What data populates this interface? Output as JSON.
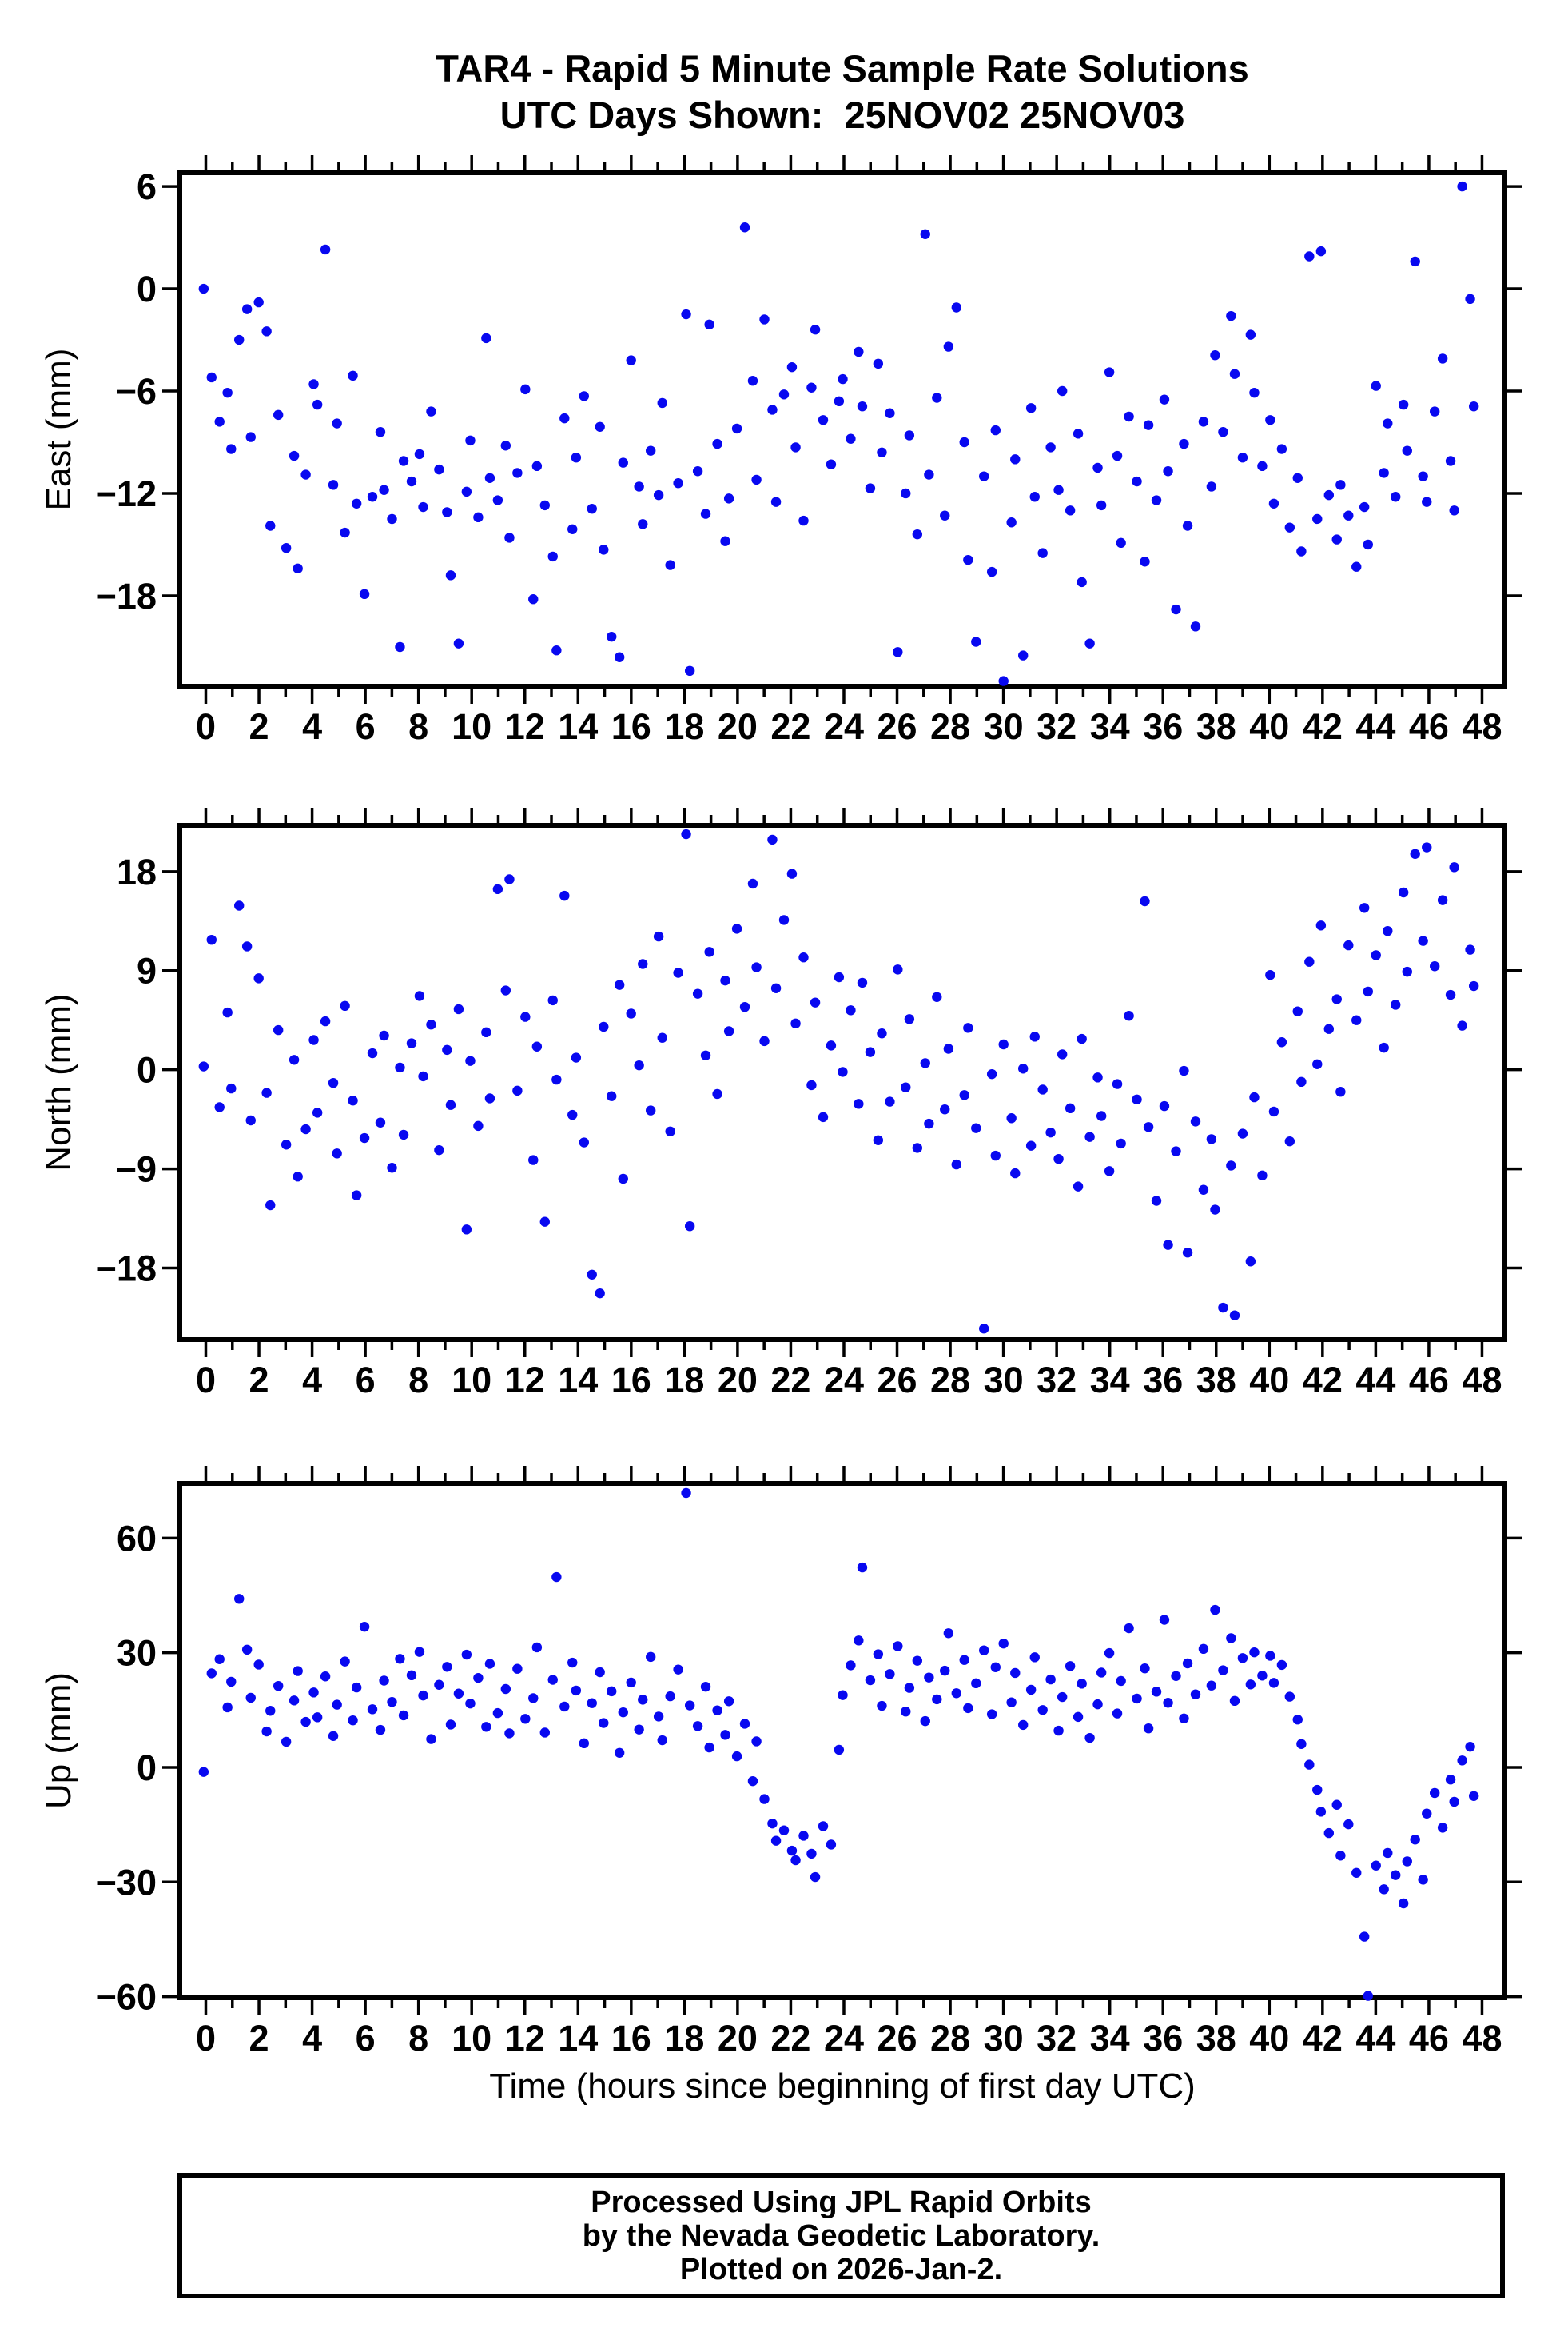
{
  "title": {
    "line1": "TAR4 - Rapid 5 Minute Sample Rate Solutions",
    "line2": "UTC Days Shown:  25NOV02 25NOV03"
  },
  "x_axis": {
    "label": "Time (hours since beginning of first day UTC)",
    "tick_values": [
      0,
      2,
      4,
      6,
      8,
      10,
      12,
      14,
      16,
      18,
      20,
      22,
      24,
      26,
      28,
      30,
      32,
      34,
      36,
      38,
      40,
      42,
      44,
      46,
      48
    ],
    "tick_labels": [
      "0",
      "2",
      "4",
      "6",
      "8",
      "10",
      "12",
      "14",
      "16",
      "18",
      "20",
      "22",
      "24",
      "26",
      "28",
      "30",
      "32",
      "34",
      "36",
      "38",
      "40",
      "42",
      "44",
      "46",
      "48"
    ],
    "minor_step": 1,
    "range": [
      0,
      48
    ]
  },
  "footer": {
    "line1": "Processed Using JPL Rapid Orbits",
    "line2": "by the Nevada Geodetic Laboratory.",
    "line3": "Plotted on 2026-Jan-2."
  },
  "colors": {
    "point": "#0808F0",
    "axis": "#000000"
  },
  "chart_data": [
    {
      "type": "scatter",
      "name": "east",
      "ylabel": "East (mm)",
      "yticks": [
        6,
        0,
        -6,
        -12,
        -18
      ],
      "ytick_labels": [
        "6",
        "0",
        "−6",
        "−12",
        "−18"
      ],
      "ylim": [
        -23.3,
        6.8
      ],
      "x_range": [
        0,
        48
      ],
      "x_start": 0,
      "x_step": 0.25,
      "y": [
        0.0,
        -5.2,
        -7.8,
        -6.1,
        -9.4,
        -3.0,
        -1.2,
        -8.7,
        -0.8,
        -2.5,
        -13.9,
        -7.4,
        -15.2,
        -9.8,
        -16.4,
        -10.9,
        -5.6,
        -6.8,
        2.3,
        -11.5,
        -7.9,
        -14.3,
        -5.1,
        -12.6,
        -17.9,
        -12.2,
        -8.4,
        -11.8,
        -13.5,
        -21.0,
        -10.1,
        -11.3,
        -9.7,
        -12.8,
        -7.2,
        -10.6,
        -13.1,
        -16.8,
        -20.8,
        -11.9,
        -8.9,
        -13.4,
        -2.9,
        -11.1,
        -12.4,
        -9.2,
        -14.6,
        -10.8,
        -5.9,
        -18.2,
        -10.4,
        -12.7,
        -15.7,
        -21.2,
        -7.6,
        -14.1,
        -9.9,
        -6.3,
        -12.9,
        -8.1,
        -15.3,
        -20.4,
        -21.6,
        -10.2,
        -4.2,
        -11.6,
        -13.8,
        -9.5,
        -12.1,
        -6.7,
        -16.2,
        -11.4,
        -1.5,
        -22.4,
        -10.7,
        -13.2,
        -2.1,
        -9.1,
        -14.8,
        -12.3,
        -8.2,
        3.6,
        -5.4,
        -11.2,
        -1.8,
        -7.1,
        -12.5,
        -6.2,
        -4.6,
        -9.3,
        -13.6,
        -5.8,
        -2.4,
        -7.7,
        -10.3,
        -6.6,
        -5.3,
        -8.8,
        -3.7,
        -6.9,
        -11.7,
        -4.4,
        -9.6,
        -7.3,
        -21.3,
        -12.0,
        -8.6,
        -14.4,
        3.2,
        -10.9,
        -6.4,
        -13.3,
        -3.4,
        -1.1,
        -9.0,
        -15.9,
        -20.7,
        -11.0,
        -16.6,
        -8.3,
        -23.0,
        -13.7,
        -10.0,
        -21.5,
        -7.0,
        -12.2,
        -15.5,
        -9.3,
        -11.8,
        -6.0,
        -13.0,
        -8.5,
        -17.2,
        -20.8,
        -10.5,
        -12.7,
        -4.9,
        -9.8,
        -14.9,
        -7.5,
        -11.3,
        -16.0,
        -8.0,
        -12.4,
        -6.5,
        -10.7,
        -18.8,
        -9.1,
        -13.9,
        -19.8,
        -7.8,
        -11.6,
        -3.9,
        -8.4,
        -1.6,
        -5.0,
        -9.9,
        -2.7,
        -6.1,
        -10.4,
        -7.7,
        -12.6,
        -9.4,
        -14.0,
        -11.1,
        -15.4,
        1.9,
        -13.5,
        2.2,
        -12.1,
        -14.7,
        -11.5,
        -13.3,
        -16.3,
        -12.8,
        -15.0,
        -5.7,
        -10.8,
        -7.9,
        -12.2,
        -6.8,
        -9.5,
        1.6,
        -11.0,
        -12.5,
        -7.2,
        -4.1,
        -10.1,
        -13.0,
        6.0,
        -0.6,
        -6.9
      ]
    },
    {
      "type": "scatter",
      "name": "north",
      "ylabel": "North (mm)",
      "yticks": [
        18,
        9,
        0,
        -9,
        -18
      ],
      "ytick_labels": [
        "18",
        "9",
        "0",
        "−9",
        "−18"
      ],
      "ylim": [
        -24.5,
        22.2
      ],
      "x_range": [
        0,
        48
      ],
      "x_start": 0,
      "x_step": 0.25,
      "y": [
        0.3,
        11.8,
        -3.4,
        5.2,
        -1.7,
        14.9,
        11.2,
        -4.6,
        8.3,
        -2.1,
        -12.3,
        3.6,
        -6.8,
        0.9,
        -9.7,
        -5.4,
        2.7,
        -3.9,
        4.4,
        -1.2,
        -7.6,
        5.8,
        -2.8,
        -11.4,
        -6.2,
        1.5,
        -4.8,
        3.1,
        -8.9,
        0.2,
        -5.9,
        2.4,
        6.7,
        -0.6,
        4.1,
        -7.3,
        1.8,
        -3.2,
        5.5,
        -14.5,
        0.8,
        -5.1,
        3.4,
        -2.6,
        16.4,
        7.2,
        17.3,
        -1.9,
        4.8,
        -8.2,
        2.1,
        -13.8,
        6.3,
        -0.9,
        15.8,
        -4.1,
        1.1,
        -6.6,
        -18.6,
        -20.3,
        3.9,
        -2.4,
        7.7,
        -9.9,
        5.1,
        0.4,
        9.6,
        -3.7,
        12.1,
        2.9,
        -5.6,
        8.8,
        21.4,
        -14.2,
        6.9,
        1.3,
        10.7,
        -2.2,
        8.1,
        3.5,
        12.8,
        5.7,
        16.9,
        9.3,
        2.6,
        20.9,
        7.4,
        13.6,
        17.8,
        4.2,
        10.2,
        -1.4,
        6.1,
        -4.3,
        2.2,
        8.4,
        -0.2,
        5.4,
        -3.1,
        7.9,
        1.6,
        -6.4,
        3.3,
        -2.9,
        9.1,
        -1.6,
        4.6,
        -7.1,
        0.6,
        -4.9,
        6.6,
        -3.6,
        1.9,
        -8.6,
        -2.3,
        3.8,
        -5.3,
        -23.5,
        -0.4,
        -7.8,
        2.3,
        -4.4,
        -9.4,
        0.1,
        -6.9,
        3.0,
        -1.8,
        -5.7,
        -8.1,
        1.4,
        -3.5,
        -10.6,
        2.8,
        -6.1,
        -0.7,
        -4.2,
        -9.2,
        -1.3,
        -6.7,
        4.9,
        -2.7,
        15.3,
        -5.2,
        -11.9,
        -3.3,
        -15.9,
        -7.4,
        -0.1,
        -16.6,
        -4.7,
        -10.9,
        -6.3,
        -12.7,
        -21.6,
        -8.7,
        -22.3,
        -5.8,
        -17.4,
        -2.5,
        -9.6,
        8.6,
        -3.8,
        2.5,
        -6.5,
        5.3,
        -1.1,
        9.8,
        0.5,
        13.1,
        3.7,
        6.4,
        -2.0,
        11.3,
        4.5,
        14.7,
        7.1,
        10.4,
        2.0,
        12.6,
        5.9,
        16.1,
        8.9,
        19.6,
        11.7,
        20.2,
        9.4,
        15.4,
        6.8,
        18.4,
        4.0,
        10.9,
        7.6
      ]
    },
    {
      "type": "scatter",
      "name": "up",
      "ylabel": "Up (mm)",
      "yticks": [
        60,
        30,
        0,
        -30,
        -60
      ],
      "ytick_labels": [
        "60",
        "30",
        "0",
        "−30",
        "−60"
      ],
      "ylim": [
        -60.3,
        74.3
      ],
      "x_range": [
        0,
        48
      ],
      "x_start": 0,
      "x_step": 0.25,
      "y": [
        -1.2,
        24.6,
        28.3,
        15.7,
        22.4,
        44.1,
        30.8,
        18.2,
        26.9,
        9.4,
        14.8,
        21.3,
        6.7,
        17.5,
        25.2,
        11.9,
        19.6,
        13.1,
        23.8,
        8.2,
        16.4,
        27.7,
        12.3,
        20.9,
        36.8,
        15.2,
        9.8,
        22.7,
        17.1,
        28.4,
        13.6,
        24.1,
        30.2,
        18.8,
        7.4,
        21.6,
        26.3,
        11.2,
        19.3,
        29.5,
        16.7,
        23.4,
        10.6,
        27.1,
        14.2,
        20.5,
        8.9,
        25.8,
        12.7,
        18.1,
        31.4,
        9.1,
        22.9,
        49.8,
        15.9,
        27.4,
        20.1,
        6.3,
        16.8,
        24.9,
        11.6,
        19.9,
        3.8,
        14.4,
        22.2,
        9.9,
        17.7,
        28.9,
        13.3,
        7.1,
        18.6,
        25.6,
        71.8,
        16.2,
        10.8,
        21.1,
        5.2,
        14.9,
        8.5,
        17.3,
        2.9,
        11.4,
        -3.6,
        6.8,
        -8.3,
        -14.7,
        -19.2,
        -16.5,
        -21.8,
        -24.3,
        -17.9,
        -22.6,
        -28.7,
        -15.4,
        -20.2,
        4.6,
        18.9,
        26.7,
        33.2,
        52.3,
        22.8,
        29.6,
        16.1,
        24.4,
        31.7,
        14.6,
        20.8,
        27.9,
        12.1,
        23.5,
        17.8,
        25.3,
        35.1,
        19.4,
        28.1,
        15.5,
        22.0,
        30.6,
        13.9,
        26.2,
        32.4,
        17.0,
        24.7,
        11.1,
        20.3,
        28.8,
        15.0,
        23.0,
        9.6,
        18.4,
        26.5,
        13.2,
        21.9,
        7.7,
        16.5,
        24.8,
        29.9,
        14.1,
        22.6,
        36.4,
        18.0,
        25.9,
        10.2,
        19.8,
        38.6,
        16.9,
        23.9,
        12.8,
        27.2,
        19.1,
        31.0,
        21.4,
        41.2,
        25.4,
        33.8,
        17.4,
        28.6,
        21.7,
        30.1,
        24.0,
        29.2,
        22.1,
        26.8,
        18.5,
        12.5,
        6.1,
        0.7,
        -5.9,
        -11.6,
        -17.2,
        -9.8,
        -23.1,
        -14.9,
        -27.6,
        -44.3,
        -59.8,
        -25.7,
        -31.9,
        -22.4,
        -28.2,
        -35.6,
        -24.6,
        -18.9,
        -29.4,
        -12.1,
        -6.7,
        -15.8,
        -3.2,
        -9.0,
        1.8,
        5.4,
        -7.5
      ]
    }
  ]
}
